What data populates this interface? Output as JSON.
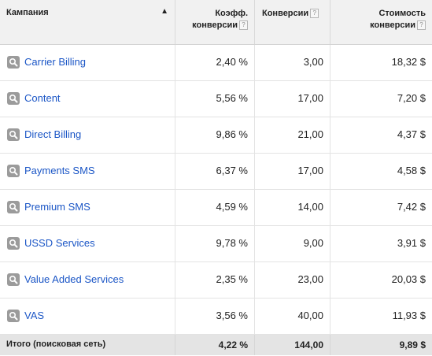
{
  "header": {
    "campaign": "Кампания",
    "conv_rate": [
      "Коэфф.",
      "конверсии"
    ],
    "conversions": "Конверсии",
    "cost_per_conv": [
      "Стоимость",
      "конверсии"
    ],
    "help_glyph": "?"
  },
  "rows": [
    {
      "name": "Carrier Billing",
      "rate": "2,40 %",
      "conv": "3,00",
      "cost": "18,32 $"
    },
    {
      "name": "Content",
      "rate": "5,56 %",
      "conv": "17,00",
      "cost": "7,20 $"
    },
    {
      "name": "Direct Billing",
      "rate": "9,86 %",
      "conv": "21,00",
      "cost": "4,37 $"
    },
    {
      "name": "Payments SMS",
      "rate": "6,37 %",
      "conv": "17,00",
      "cost": "4,58 $"
    },
    {
      "name": "Premium SMS",
      "rate": "4,59 %",
      "conv": "14,00",
      "cost": "7,42 $"
    },
    {
      "name": "USSD Services",
      "rate": "9,78 %",
      "conv": "9,00",
      "cost": "3,91 $"
    },
    {
      "name": "Value Added Services",
      "rate": "2,35 %",
      "conv": "23,00",
      "cost": "20,03 $"
    },
    {
      "name": "VAS",
      "rate": "3,56 %",
      "conv": "40,00",
      "cost": "11,93 $"
    }
  ],
  "total": {
    "label": "Итого (поисковая сеть)",
    "rate": "4,22 %",
    "conv": "144,00",
    "cost": "9,89 $"
  },
  "colors": {
    "link": "#1b56c6",
    "header_bg": "#f1f1f1",
    "total_bg": "#e4e4e4",
    "icon_bg": "#9b9b9b"
  },
  "icons": {
    "sort": "arrow-up-icon",
    "campaign": "search-icon",
    "help": "help-icon"
  }
}
